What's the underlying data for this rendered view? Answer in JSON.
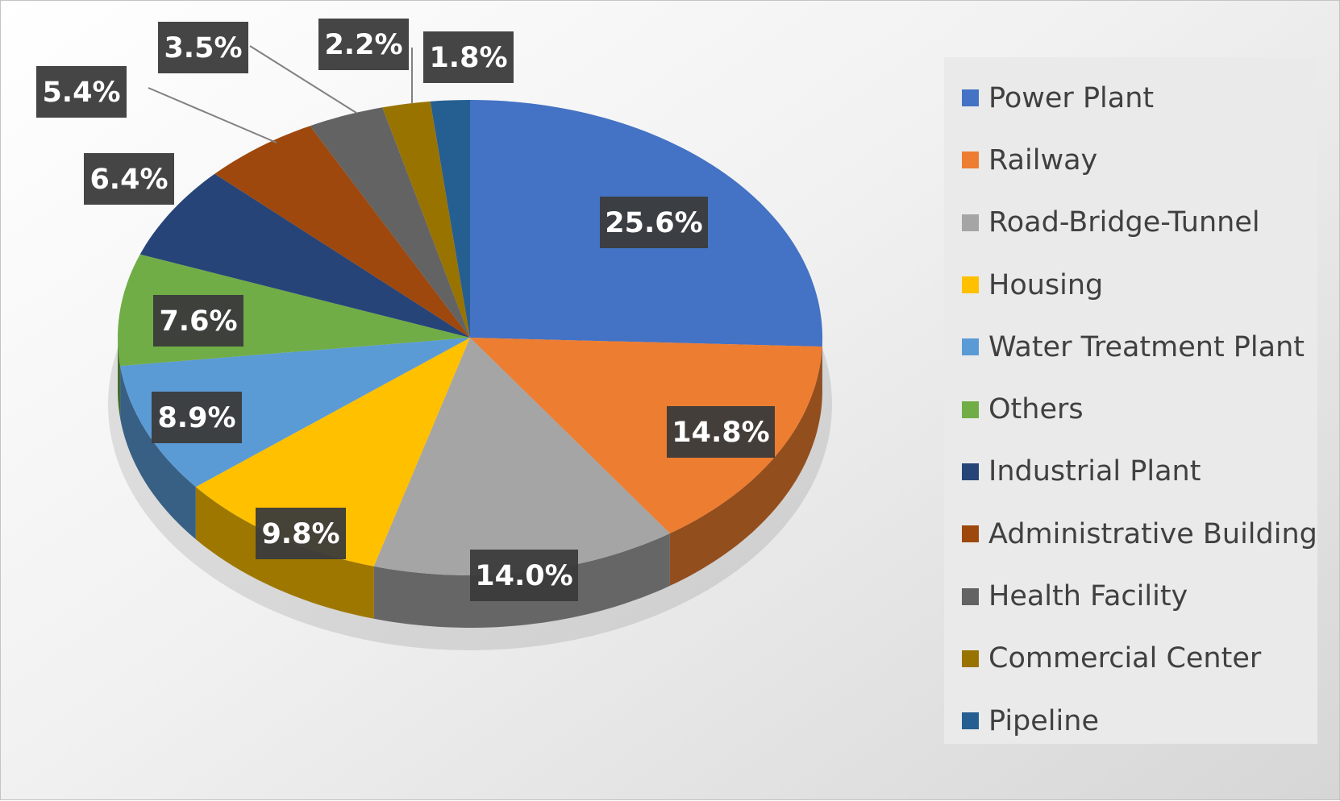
{
  "chart_data": {
    "type": "pie",
    "style": "3d",
    "legend_position": "right",
    "categories": [
      "Power Plant",
      "Railway",
      "Road-Bridge-Tunnel",
      "Housing",
      "Water Treatment Plant",
      "Others",
      "Industrial Plant",
      "Administrative Building",
      "Health Facility",
      "Commercial Center",
      "Pipeline"
    ],
    "values": [
      25.6,
      14.8,
      14.0,
      9.8,
      8.9,
      7.6,
      6.4,
      5.4,
      3.5,
      2.2,
      1.8
    ],
    "data_labels": [
      "25.6%",
      "14.8%",
      "14.0%",
      "9.8%",
      "8.9%",
      "7.6%",
      "6.4%",
      "5.4%",
      "3.5%",
      "2.2%",
      "1.8%"
    ],
    "colors": [
      "#4472C4",
      "#ED7D31",
      "#A5A5A5",
      "#FFC000",
      "#5B9BD5",
      "#70AD47",
      "#264478",
      "#9E480E",
      "#636363",
      "#997300",
      "#255E91"
    ]
  }
}
